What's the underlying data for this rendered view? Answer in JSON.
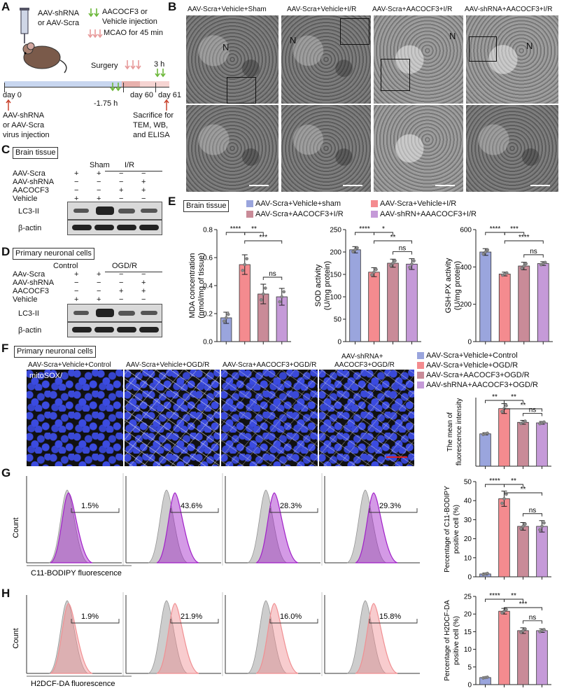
{
  "panels": {
    "A": "A",
    "B": "B",
    "C": "C",
    "D": "D",
    "E": "E",
    "F": "F",
    "G": "G",
    "H": "H"
  },
  "panelA": {
    "inject_lines": [
      "AAV-shRNA",
      "or AAV-Scra"
    ],
    "legend_green": [
      "AACOCF3 or",
      "Vehicle injection"
    ],
    "legend_pink": "MCAO for 45 min",
    "surgery": "Surgery",
    "h3": "3 h",
    "day0": "day 0",
    "day60": "day 60",
    "day61": "day 61",
    "h175": "-1.75 h",
    "virus": [
      "AAV-shRNA",
      "or AAV-Scra",
      "virus injection"
    ],
    "sacrifice": [
      "Sacrifice for",
      "TEM, WB,",
      "and ELISA"
    ]
  },
  "panelB": {
    "titles": [
      "AAV-Scra+Vehicle+Sham",
      "AAV-Scra+Vehicle+I/R",
      "AAV-Scra+AACOCF3+I/R",
      "AAV-shRNA+AACOCF3+I/R"
    ],
    "N": "N"
  },
  "panelC": {
    "box": "Brain tissue",
    "sham": "Sham",
    "ir": "I/R",
    "rows": [
      {
        "label": "AAV-Scra",
        "signs": [
          "+",
          "+",
          "−",
          "−"
        ]
      },
      {
        "label": "AAV-shRNA",
        "signs": [
          "−",
          "−",
          "−",
          "+"
        ]
      },
      {
        "label": "AACOCF3",
        "signs": [
          "−",
          "−",
          "+",
          "+"
        ]
      },
      {
        "label": "Vehicle",
        "signs": [
          "+",
          "+",
          "−",
          "−"
        ]
      }
    ],
    "lc3": "LC3-II",
    "actin": "β-actin"
  },
  "panelD": {
    "box": "Primary neuronal cells",
    "control": "Control",
    "ogdr": "OGD/R",
    "rows": [
      {
        "label": "AAv-Scra",
        "signs": [
          "+",
          "+",
          "−",
          "−"
        ]
      },
      {
        "label": "AAV-shRNA",
        "signs": [
          "−",
          "−",
          "−",
          "+"
        ]
      },
      {
        "label": "AACOCF3",
        "signs": [
          "−",
          "−",
          "+",
          "+"
        ]
      },
      {
        "label": "Vehicle",
        "signs": [
          "+",
          "+",
          "−",
          "−"
        ]
      }
    ],
    "lc3": "LC3-II",
    "actin": "β-actin"
  },
  "panelE": {
    "box": "Brain tissue",
    "legend": [
      "AAV-Scra+Vehicle+sham",
      "AAV-Scra+AACOCF3+I/R",
      "AAV-Scra+Vehicle+I/R",
      "AAV-shRN+AAACOCF3+I/R"
    ]
  },
  "panelF": {
    "box": "Primary neuronal cells",
    "titles": [
      "AAV-Scra+Vehicle+Control",
      "AAV-Scra+Vehicle+OGD/R",
      "AAV-Scra+AACOCF3+OGD/R",
      "AAV-shRNA+"
    ],
    "title4b": "AACOCF3+OGD/R",
    "mitosox": "mitoSOX/",
    "legend": [
      "AAV-Scra+Vehicle+Control",
      "AAV-Scra+Vehicle+OGD/R",
      "AAV-Scra+AACOCF3+OGD/R",
      "AAV-shRNA+AACOCF3+OGD/R"
    ]
  },
  "panelG": {
    "percents": [
      "1.5%",
      "43.6%",
      "28.3%",
      "29.3%"
    ],
    "ylabel": "Count",
    "xlabel": "C11-BODIPY fluorescence"
  },
  "panelH": {
    "percents": [
      "1.9%",
      "21.9%",
      "16.0%",
      "15.8%"
    ],
    "ylabel": "Count",
    "xlabel": "H2DCF-DA fluorescence"
  },
  "colors": {
    "c1": "#9aa5dd",
    "c2": "#f48b8f",
    "c3": "#c98b98",
    "c4": "#c59ad8",
    "purple": "#a020c8",
    "pink": "#f08f92"
  },
  "chart_data": [
    {
      "type": "bar",
      "id": "mda",
      "ylabel": [
        "MDA concentration",
        "(nmol/mg of tissue)"
      ],
      "ylim": [
        0,
        0.8
      ],
      "yticks": [
        0,
        0.2,
        0.4,
        0.6,
        0.8
      ],
      "yticklabels": [
        "0.0",
        "0.2",
        "0.4",
        "0.6",
        "0.8"
      ],
      "values": [
        0.17,
        0.55,
        0.34,
        0.32
      ],
      "errors": [
        0.04,
        0.07,
        0.07,
        0.06
      ],
      "sig": [
        {
          "a": 0,
          "b": 1,
          "t": "****",
          "lv": 0
        },
        {
          "a": 1,
          "b": 2,
          "t": "**",
          "lv": 0
        },
        {
          "a": 1,
          "b": 3,
          "t": "***",
          "lv": 1
        },
        {
          "a": 2,
          "b": 3,
          "t": "ns",
          "lv": 2
        }
      ]
    },
    {
      "type": "bar",
      "id": "sod",
      "ylabel": [
        "SOD activity",
        "(U/mg protein)"
      ],
      "ylim": [
        0,
        250
      ],
      "yticks": [
        0,
        50,
        100,
        150,
        200,
        250
      ],
      "yticklabels": [
        "0",
        "50",
        "100",
        "150",
        "200",
        "250"
      ],
      "values": [
        205,
        155,
        175,
        173
      ],
      "errors": [
        7,
        10,
        9,
        12
      ],
      "sig": [
        {
          "a": 0,
          "b": 1,
          "t": "****",
          "lv": 0
        },
        {
          "a": 1,
          "b": 2,
          "t": "*",
          "lv": 0
        },
        {
          "a": 1,
          "b": 3,
          "t": "**",
          "lv": 1
        },
        {
          "a": 2,
          "b": 3,
          "t": "ns",
          "lv": 2
        }
      ]
    },
    {
      "type": "bar",
      "id": "gsh",
      "ylabel": [
        "GSH-PX activity",
        "(U/mg protein)"
      ],
      "ylim": [
        0,
        600
      ],
      "yticks": [
        0,
        200,
        400,
        600
      ],
      "yticklabels": [
        "0",
        "200",
        "400",
        "600"
      ],
      "values": [
        480,
        362,
        405,
        418
      ],
      "errors": [
        18,
        10,
        20,
        10
      ],
      "sig": [
        {
          "a": 0,
          "b": 1,
          "t": "****",
          "lv": 0
        },
        {
          "a": 1,
          "b": 2,
          "t": "***",
          "lv": 0
        },
        {
          "a": 1,
          "b": 3,
          "t": "****",
          "lv": 1
        },
        {
          "a": 2,
          "b": 3,
          "t": "ns",
          "lv": 2
        }
      ]
    },
    {
      "type": "bar",
      "id": "fmean",
      "ylabel": [
        "The mean of",
        "fluorescence intensity"
      ],
      "ylim": [
        0,
        250
      ],
      "values": [
        118,
        210,
        160,
        158
      ],
      "errors": [
        4,
        18,
        7,
        5
      ],
      "sig": [
        {
          "a": 0,
          "b": 1,
          "t": "**",
          "lv": 0
        },
        {
          "a": 1,
          "b": 2,
          "t": "**",
          "lv": 0
        },
        {
          "a": 1,
          "b": 3,
          "t": "**",
          "lv": 1
        },
        {
          "a": 2,
          "b": 3,
          "t": "ns",
          "lv": 2
        }
      ]
    },
    {
      "type": "bar",
      "id": "c11",
      "ylabel": [
        "Percentage of C11-BODIPY",
        "positive cell (%)"
      ],
      "ylim": [
        0,
        50
      ],
      "yticks": [
        0,
        10,
        20,
        30,
        40,
        50
      ],
      "yticklabels": [
        "0",
        "10",
        "20",
        "30",
        "40",
        "50"
      ],
      "values": [
        1.5,
        41,
        26.5,
        26.5
      ],
      "errors": [
        0.5,
        4,
        2,
        3
      ],
      "sig": [
        {
          "a": 0,
          "b": 1,
          "t": "****",
          "lv": 0
        },
        {
          "a": 1,
          "b": 2,
          "t": "**",
          "lv": 0
        },
        {
          "a": 1,
          "b": 3,
          "t": "**",
          "lv": 1
        },
        {
          "a": 2,
          "b": 3,
          "t": "ns",
          "lv": 2
        }
      ]
    },
    {
      "type": "bar",
      "id": "h2d",
      "ylabel": [
        "Percentage of H2DCF-DA",
        "positive cell (%)"
      ],
      "ylim": [
        0,
        25
      ],
      "yticks": [
        0,
        5,
        10,
        15,
        20,
        25
      ],
      "yticklabels": [
        "0",
        "5",
        "10",
        "15",
        "20",
        "25"
      ],
      "values": [
        2,
        20.8,
        15.3,
        15.3
      ],
      "errors": [
        0.2,
        0.8,
        0.8,
        0.5
      ],
      "sig": [
        {
          "a": 0,
          "b": 1,
          "t": "****",
          "lv": 0
        },
        {
          "a": 1,
          "b": 2,
          "t": "**",
          "lv": 0
        },
        {
          "a": 1,
          "b": 3,
          "t": "***",
          "lv": 1
        },
        {
          "a": 2,
          "b": 3,
          "t": "ns",
          "lv": 2
        }
      ]
    }
  ]
}
